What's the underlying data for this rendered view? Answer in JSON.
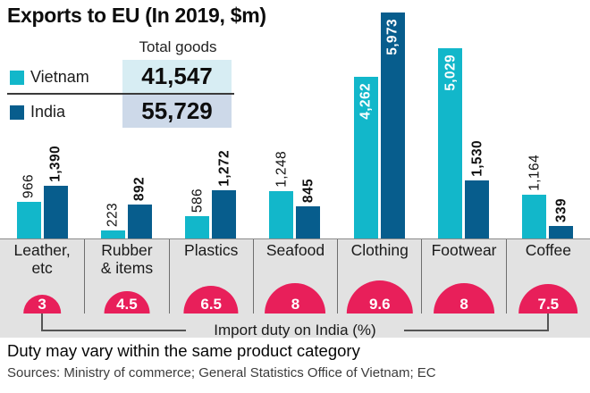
{
  "title": "Exports to EU (In 2019, $m)",
  "legend": {
    "total_goods_label": "Total goods",
    "items": [
      {
        "label": "Vietnam",
        "total": "41,547"
      },
      {
        "label": "India",
        "total": "55,729"
      }
    ]
  },
  "chart_data": {
    "type": "bar",
    "title": "Exports to EU (In 2019, $m)",
    "unit": "$m",
    "categories": [
      "Leather, etc",
      "Rubber & items",
      "Plastics",
      "Seafood",
      "Clothing",
      "Footwear",
      "Coffee"
    ],
    "category_display": [
      "Leather,\netc",
      "Rubber\n& items",
      "Plastics",
      "Seafood",
      "Clothing",
      "Footwear",
      "Coffee"
    ],
    "series": [
      {
        "name": "Vietnam",
        "color": "#12b7ca",
        "values": [
          966,
          223,
          586,
          1248,
          4262,
          5029,
          1164
        ],
        "total": 41547
      },
      {
        "name": "India",
        "color": "#075d8d",
        "values": [
          1390,
          892,
          1272,
          845,
          5973,
          1530,
          339
        ],
        "total": 55729
      }
    ],
    "import_duty": {
      "label": "Import duty on India (%)",
      "values": [
        3,
        4.5,
        6.5,
        8,
        9.6,
        8,
        7.5
      ],
      "display": [
        "3",
        "4.5",
        "6.5",
        "8",
        "9.6",
        "8",
        "7.5"
      ],
      "badge_color": "#e81f5a"
    },
    "ylim": [
      0,
      6000
    ],
    "grid": false,
    "legend_position": "top-left"
  },
  "colors": {
    "vietnam": "#12b7ca",
    "india": "#075d8d",
    "duty_badge": "#e81f5a",
    "vietnam_total_bg": "#d7edf3",
    "india_total_bg": "#cdd9e9",
    "panel_bg": "#e2e2e2"
  },
  "footer": {
    "note": "Duty may vary within the same product category",
    "sources": "Sources: Ministry of commerce; General Statistics Office of Vietnam; EC"
  }
}
